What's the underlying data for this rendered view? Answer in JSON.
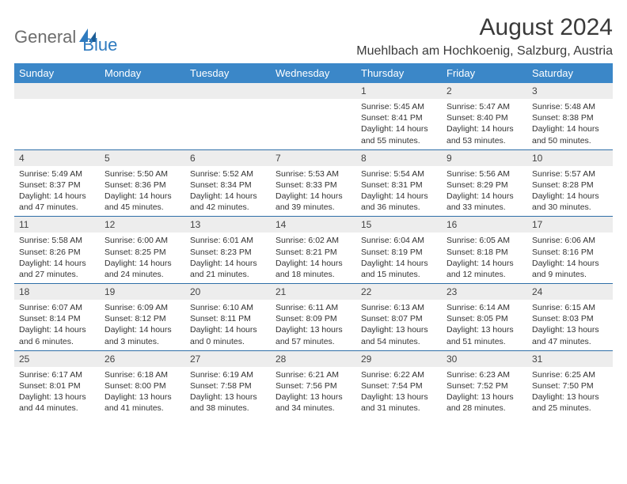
{
  "logo": {
    "part1": "General",
    "part2": "Blue"
  },
  "title": "August 2024",
  "location": "Muehlbach am Hochkoenig, Salzburg, Austria",
  "colors": {
    "header_bg": "#3b87c8",
    "header_text": "#ffffff",
    "daynum_bg": "#ededed",
    "row_border": "#2f6fa8",
    "logo_gray": "#6d6d6d",
    "logo_blue": "#2f7bbf"
  },
  "weekdays": [
    "Sunday",
    "Monday",
    "Tuesday",
    "Wednesday",
    "Thursday",
    "Friday",
    "Saturday"
  ],
  "weeks": [
    [
      null,
      null,
      null,
      null,
      {
        "n": "1",
        "sr": "Sunrise: 5:45 AM",
        "ss": "Sunset: 8:41 PM",
        "d1": "Daylight: 14 hours",
        "d2": "and 55 minutes."
      },
      {
        "n": "2",
        "sr": "Sunrise: 5:47 AM",
        "ss": "Sunset: 8:40 PM",
        "d1": "Daylight: 14 hours",
        "d2": "and 53 minutes."
      },
      {
        "n": "3",
        "sr": "Sunrise: 5:48 AM",
        "ss": "Sunset: 8:38 PM",
        "d1": "Daylight: 14 hours",
        "d2": "and 50 minutes."
      }
    ],
    [
      {
        "n": "4",
        "sr": "Sunrise: 5:49 AM",
        "ss": "Sunset: 8:37 PM",
        "d1": "Daylight: 14 hours",
        "d2": "and 47 minutes."
      },
      {
        "n": "5",
        "sr": "Sunrise: 5:50 AM",
        "ss": "Sunset: 8:36 PM",
        "d1": "Daylight: 14 hours",
        "d2": "and 45 minutes."
      },
      {
        "n": "6",
        "sr": "Sunrise: 5:52 AM",
        "ss": "Sunset: 8:34 PM",
        "d1": "Daylight: 14 hours",
        "d2": "and 42 minutes."
      },
      {
        "n": "7",
        "sr": "Sunrise: 5:53 AM",
        "ss": "Sunset: 8:33 PM",
        "d1": "Daylight: 14 hours",
        "d2": "and 39 minutes."
      },
      {
        "n": "8",
        "sr": "Sunrise: 5:54 AM",
        "ss": "Sunset: 8:31 PM",
        "d1": "Daylight: 14 hours",
        "d2": "and 36 minutes."
      },
      {
        "n": "9",
        "sr": "Sunrise: 5:56 AM",
        "ss": "Sunset: 8:29 PM",
        "d1": "Daylight: 14 hours",
        "d2": "and 33 minutes."
      },
      {
        "n": "10",
        "sr": "Sunrise: 5:57 AM",
        "ss": "Sunset: 8:28 PM",
        "d1": "Daylight: 14 hours",
        "d2": "and 30 minutes."
      }
    ],
    [
      {
        "n": "11",
        "sr": "Sunrise: 5:58 AM",
        "ss": "Sunset: 8:26 PM",
        "d1": "Daylight: 14 hours",
        "d2": "and 27 minutes."
      },
      {
        "n": "12",
        "sr": "Sunrise: 6:00 AM",
        "ss": "Sunset: 8:25 PM",
        "d1": "Daylight: 14 hours",
        "d2": "and 24 minutes."
      },
      {
        "n": "13",
        "sr": "Sunrise: 6:01 AM",
        "ss": "Sunset: 8:23 PM",
        "d1": "Daylight: 14 hours",
        "d2": "and 21 minutes."
      },
      {
        "n": "14",
        "sr": "Sunrise: 6:02 AM",
        "ss": "Sunset: 8:21 PM",
        "d1": "Daylight: 14 hours",
        "d2": "and 18 minutes."
      },
      {
        "n": "15",
        "sr": "Sunrise: 6:04 AM",
        "ss": "Sunset: 8:19 PM",
        "d1": "Daylight: 14 hours",
        "d2": "and 15 minutes."
      },
      {
        "n": "16",
        "sr": "Sunrise: 6:05 AM",
        "ss": "Sunset: 8:18 PM",
        "d1": "Daylight: 14 hours",
        "d2": "and 12 minutes."
      },
      {
        "n": "17",
        "sr": "Sunrise: 6:06 AM",
        "ss": "Sunset: 8:16 PM",
        "d1": "Daylight: 14 hours",
        "d2": "and 9 minutes."
      }
    ],
    [
      {
        "n": "18",
        "sr": "Sunrise: 6:07 AM",
        "ss": "Sunset: 8:14 PM",
        "d1": "Daylight: 14 hours",
        "d2": "and 6 minutes."
      },
      {
        "n": "19",
        "sr": "Sunrise: 6:09 AM",
        "ss": "Sunset: 8:12 PM",
        "d1": "Daylight: 14 hours",
        "d2": "and 3 minutes."
      },
      {
        "n": "20",
        "sr": "Sunrise: 6:10 AM",
        "ss": "Sunset: 8:11 PM",
        "d1": "Daylight: 14 hours",
        "d2": "and 0 minutes."
      },
      {
        "n": "21",
        "sr": "Sunrise: 6:11 AM",
        "ss": "Sunset: 8:09 PM",
        "d1": "Daylight: 13 hours",
        "d2": "and 57 minutes."
      },
      {
        "n": "22",
        "sr": "Sunrise: 6:13 AM",
        "ss": "Sunset: 8:07 PM",
        "d1": "Daylight: 13 hours",
        "d2": "and 54 minutes."
      },
      {
        "n": "23",
        "sr": "Sunrise: 6:14 AM",
        "ss": "Sunset: 8:05 PM",
        "d1": "Daylight: 13 hours",
        "d2": "and 51 minutes."
      },
      {
        "n": "24",
        "sr": "Sunrise: 6:15 AM",
        "ss": "Sunset: 8:03 PM",
        "d1": "Daylight: 13 hours",
        "d2": "and 47 minutes."
      }
    ],
    [
      {
        "n": "25",
        "sr": "Sunrise: 6:17 AM",
        "ss": "Sunset: 8:01 PM",
        "d1": "Daylight: 13 hours",
        "d2": "and 44 minutes."
      },
      {
        "n": "26",
        "sr": "Sunrise: 6:18 AM",
        "ss": "Sunset: 8:00 PM",
        "d1": "Daylight: 13 hours",
        "d2": "and 41 minutes."
      },
      {
        "n": "27",
        "sr": "Sunrise: 6:19 AM",
        "ss": "Sunset: 7:58 PM",
        "d1": "Daylight: 13 hours",
        "d2": "and 38 minutes."
      },
      {
        "n": "28",
        "sr": "Sunrise: 6:21 AM",
        "ss": "Sunset: 7:56 PM",
        "d1": "Daylight: 13 hours",
        "d2": "and 34 minutes."
      },
      {
        "n": "29",
        "sr": "Sunrise: 6:22 AM",
        "ss": "Sunset: 7:54 PM",
        "d1": "Daylight: 13 hours",
        "d2": "and 31 minutes."
      },
      {
        "n": "30",
        "sr": "Sunrise: 6:23 AM",
        "ss": "Sunset: 7:52 PM",
        "d1": "Daylight: 13 hours",
        "d2": "and 28 minutes."
      },
      {
        "n": "31",
        "sr": "Sunrise: 6:25 AM",
        "ss": "Sunset: 7:50 PM",
        "d1": "Daylight: 13 hours",
        "d2": "and 25 minutes."
      }
    ]
  ]
}
